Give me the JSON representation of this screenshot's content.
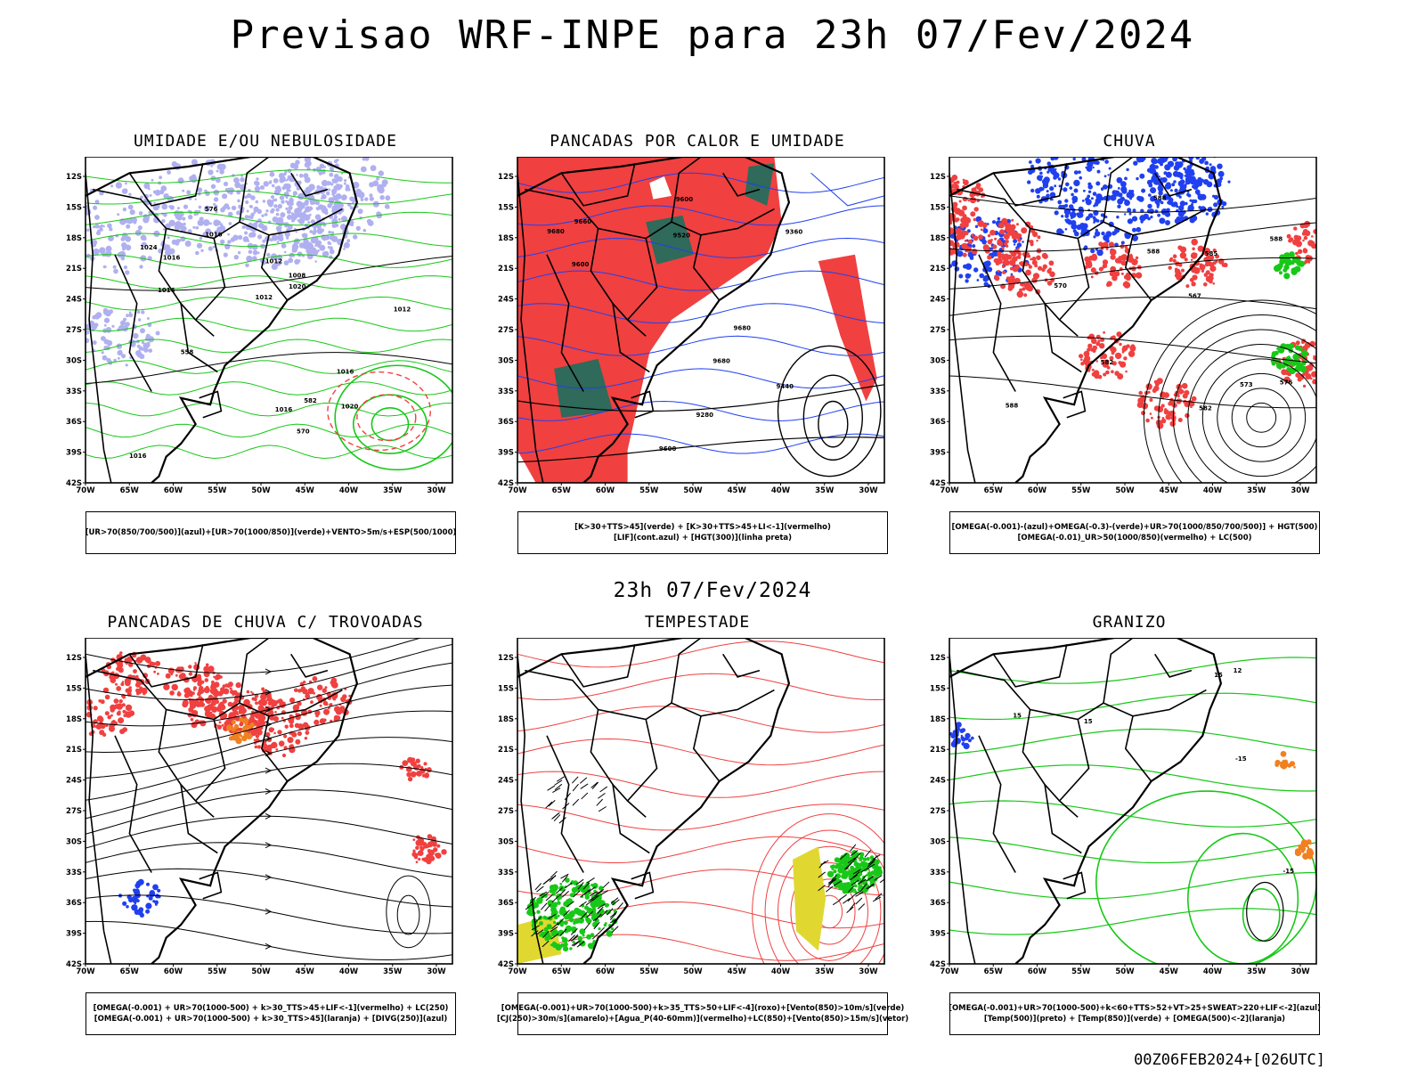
{
  "header": {
    "title": "Previsao WRF-INPE  para 23h 07/Fev/2024"
  },
  "middle": {
    "title": "23h 07/Fev/2024"
  },
  "footer": {
    "run": "00Z06FEB2024+[026UTC]"
  },
  "axes": {
    "lat_ticks": [
      "12S",
      "15S",
      "18S",
      "21S",
      "24S",
      "27S",
      "30S",
      "33S",
      "36S",
      "39S",
      "42S"
    ],
    "lon_ticks": [
      "70W",
      "65W",
      "60W",
      "55W",
      "50W",
      "45W",
      "40W",
      "35W",
      "30W"
    ]
  },
  "colors": {
    "red": "#f04040",
    "green": "#18c818",
    "blue": "#2040f0",
    "lavender": "#b0b0f0",
    "darkgreen": "#2f6a5a",
    "yellow": "#e0d830",
    "orange": "#f08020"
  },
  "panels": [
    {
      "title": "UMIDADE E/OU NEBULOSIDADE",
      "legend": [
        "[UR>70(850/700/500)](azul)+[UR>70(1000/850)](verde)+VENTO>5m/s+ESP(500/1000)"
      ],
      "labels": [
        "1016",
        "1016",
        "1016",
        "1012",
        "1016",
        "1008",
        "1016",
        "1020",
        "1024",
        "1012",
        "570",
        "576",
        "558",
        "582",
        "1016",
        "1020",
        "1012"
      ]
    },
    {
      "title": "PANCADAS POR CALOR E UMIDADE",
      "legend": [
        "[K>30+TTS>45](verde) + [K>30+TTS>45+LI<-1](vermelho)",
        "[LIF](cont.azul) + [HGT(300)](linha preta)"
      ],
      "labels": [
        "9680",
        "9680",
        "9680",
        "9600",
        "9600",
        "9600",
        "9440",
        "9360",
        "9280",
        "9520",
        "9660"
      ]
    },
    {
      "title": "CHUVA",
      "legend": [
        "[OMEGA(-0.001)-(azul)+OMEGA(-0.3)-(verde)+UR>70(1000/850/700/500)] + HGT(500)",
        "[OMEGA(-0.01)_UR>50(1000/850)(vermelho) + LC(500)"
      ],
      "labels": [
        "588",
        "585",
        "588",
        "588",
        "582",
        "588",
        "576",
        "570",
        "573",
        "567",
        "582"
      ]
    },
    {
      "title": "PANCADAS DE CHUVA C/ TROVOADAS",
      "legend": [
        "[OMEGA(-0.001) + UR>70(1000-500) + k>30_TTS>45+LIF<-1](vermelho) + LC(250)",
        "[OMEGA(-0.001) + UR>70(1000-500) + k>30_TTS>45](laranja) + [DIVG(250)](azul)"
      ],
      "labels": []
    },
    {
      "title": "TEMPESTADE",
      "legend": [
        "[OMEGA(-0.001)+UR>70(1000-500)+k>35_TTS>50+LIF<-4](roxo)+[Vento(850)>10m/s](verde)",
        "[CJ(250)>30m/s](amarelo)+[Agua_P(40-60mm)](vermelho)+LC(850)+[Vento(850)>15m/s](vetor)"
      ],
      "labels": []
    },
    {
      "title": "GRANIZO",
      "legend": [
        "[OMEGA(-0.001)+UR>70(1000-500)+k<60+TTS>52+VT>25+SWEAT>220+LIF<-2](azul)",
        "[Temp(500)](preto) + [Temp(850)](verde) + [OMEGA(500)<-2](laranja)"
      ],
      "labels": [
        "-15",
        "15",
        "15",
        "15",
        "12",
        "-15"
      ]
    }
  ]
}
